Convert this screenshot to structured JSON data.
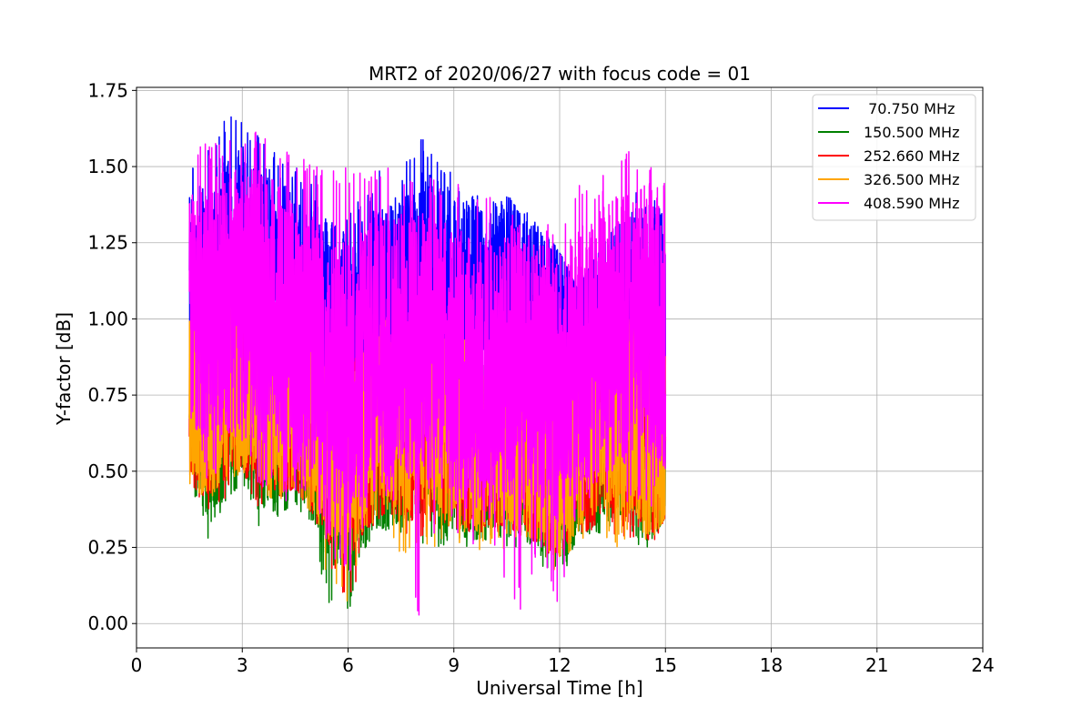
{
  "chart_data": {
    "type": "line",
    "title": "MRT2 of 2020/06/27 with focus code = 01",
    "xlabel": "Universal Time [h]",
    "ylabel": "Y-factor [dB]",
    "xlim": [
      0,
      24
    ],
    "ylim": [
      -0.08,
      1.76
    ],
    "xticks": [
      0,
      3,
      6,
      9,
      12,
      15,
      18,
      21,
      24
    ],
    "yticks": [
      0.0,
      0.25,
      0.5,
      0.75,
      1.0,
      1.25,
      1.5,
      1.75
    ],
    "xtick_labels": [
      "0",
      "3",
      "6",
      "9",
      "12",
      "15",
      "18",
      "21",
      "24"
    ],
    "ytick_labels": [
      "0.00",
      "0.25",
      "0.50",
      "0.75",
      "1.00",
      "1.25",
      "1.50",
      "1.75"
    ],
    "grid": true,
    "legend_position": "top-right",
    "x_range_of_data": [
      1.5,
      15.0
    ],
    "series": [
      {
        "name": " 70.750 MHz",
        "color": "#0000ff",
        "x": [
          1.5,
          2.0,
          2.5,
          3.0,
          3.5,
          4.0,
          4.5,
          5.0,
          5.5,
          6.0,
          6.5,
          7.0,
          7.5,
          8.0,
          8.5,
          9.0,
          9.5,
          10.0,
          10.5,
          11.0,
          11.5,
          12.0,
          12.5,
          13.0,
          13.5,
          14.0,
          14.5,
          15.0
        ],
        "mid": [
          1.05,
          1.1,
          1.15,
          1.15,
          1.12,
          1.1,
          1.08,
          1.05,
          1.0,
          0.98,
          1.0,
          1.05,
          1.05,
          1.1,
          1.12,
          1.1,
          1.1,
          1.1,
          1.12,
          1.05,
          1.02,
          1.0,
          0.98,
          0.95,
          0.95,
          0.98,
          1.0,
          1.0
        ],
        "amp": [
          0.35,
          0.38,
          0.42,
          0.42,
          0.4,
          0.38,
          0.38,
          0.35,
          0.32,
          0.32,
          0.33,
          0.35,
          0.35,
          0.38,
          0.38,
          0.36,
          0.3,
          0.28,
          0.3,
          0.3,
          0.28,
          0.25,
          0.28,
          0.32,
          0.35,
          0.38,
          0.38,
          0.35
        ],
        "min": [
          0.9,
          0.75,
          0.9,
          0.85,
          0.7,
          0.7,
          0.75,
          0.7,
          0.6,
          0.6,
          0.7,
          0.75,
          0.8,
          0.85,
          0.9,
          0.85,
          0.9,
          0.9,
          0.9,
          0.82,
          0.85,
          0.78,
          0.8,
          0.8,
          0.75,
          0.8,
          0.8,
          0.75
        ],
        "max": [
          1.5,
          1.55,
          1.67,
          1.65,
          1.63,
          1.55,
          1.5,
          1.5,
          1.4,
          1.35,
          1.42,
          1.52,
          1.5,
          1.61,
          1.53,
          1.48,
          1.42,
          1.38,
          1.4,
          1.38,
          1.3,
          1.22,
          1.1,
          1.2,
          1.3,
          1.4,
          1.45,
          1.35
        ]
      },
      {
        "name": "150.500 MHz",
        "color": "#008000",
        "x": [
          1.5,
          2.0,
          2.5,
          3.0,
          3.5,
          4.0,
          4.5,
          5.0,
          5.5,
          6.0,
          6.5,
          7.0,
          7.5,
          8.0,
          8.5,
          9.0,
          9.5,
          10.0,
          10.5,
          11.0,
          11.5,
          12.0,
          12.5,
          13.0,
          13.5,
          14.0,
          14.5,
          15.0
        ],
        "mid": [
          0.7,
          0.65,
          0.7,
          0.75,
          0.7,
          0.65,
          0.65,
          0.6,
          0.5,
          0.45,
          0.55,
          0.6,
          0.6,
          0.62,
          0.6,
          0.55,
          0.55,
          0.55,
          0.6,
          0.55,
          0.5,
          0.45,
          0.55,
          0.6,
          0.62,
          0.6,
          0.55,
          0.5
        ],
        "amp": [
          0.25,
          0.3,
          0.3,
          0.3,
          0.3,
          0.3,
          0.28,
          0.28,
          0.3,
          0.3,
          0.3,
          0.3,
          0.3,
          0.28,
          0.28,
          0.28,
          0.28,
          0.28,
          0.28,
          0.28,
          0.28,
          0.28,
          0.3,
          0.3,
          0.3,
          0.3,
          0.3,
          0.3
        ],
        "min": [
          0.4,
          0.27,
          0.35,
          0.45,
          0.3,
          0.35,
          0.4,
          0.3,
          0.02,
          0.0,
          0.25,
          0.3,
          0.28,
          0.2,
          0.25,
          0.25,
          0.25,
          0.2,
          0.25,
          0.25,
          0.18,
          0.1,
          0.25,
          0.28,
          0.3,
          0.25,
          0.25,
          0.35
        ],
        "max": [
          1.0,
          1.0,
          1.0,
          1.05,
          1.0,
          0.95,
          0.95,
          0.9,
          0.85,
          0.8,
          0.85,
          0.9,
          0.9,
          0.9,
          0.9,
          0.85,
          0.85,
          0.85,
          0.9,
          0.85,
          0.85,
          0.8,
          0.85,
          0.9,
          0.9,
          0.9,
          0.85,
          0.8
        ]
      },
      {
        "name": "252.660 MHz",
        "color": "#ff0000",
        "x": [
          1.5,
          2.0,
          2.5,
          3.0,
          3.5,
          4.0,
          4.5,
          5.0,
          5.5,
          6.0,
          6.5,
          7.0,
          7.5,
          8.0,
          8.5,
          9.0,
          9.5,
          10.0,
          10.5,
          11.0,
          11.5,
          12.0,
          12.5,
          13.0,
          13.5,
          14.0,
          14.5,
          15.0
        ],
        "mid": [
          0.72,
          0.7,
          0.75,
          0.78,
          0.75,
          0.7,
          0.7,
          0.65,
          0.55,
          0.5,
          0.6,
          0.65,
          0.65,
          0.66,
          0.65,
          0.6,
          0.6,
          0.6,
          0.62,
          0.58,
          0.55,
          0.5,
          0.58,
          0.62,
          0.65,
          0.62,
          0.58,
          0.55
        ],
        "amp": [
          0.28,
          0.3,
          0.32,
          0.32,
          0.3,
          0.3,
          0.3,
          0.3,
          0.3,
          0.3,
          0.3,
          0.3,
          0.3,
          0.3,
          0.3,
          0.3,
          0.3,
          0.3,
          0.3,
          0.3,
          0.3,
          0.3,
          0.3,
          0.3,
          0.3,
          0.3,
          0.3,
          0.3
        ],
        "min": [
          0.45,
          0.35,
          0.4,
          0.5,
          0.35,
          0.4,
          0.45,
          0.35,
          0.15,
          0.0,
          0.3,
          0.35,
          0.3,
          0.25,
          0.3,
          0.3,
          0.3,
          0.25,
          0.3,
          0.3,
          0.22,
          0.15,
          0.3,
          0.3,
          0.3,
          0.22,
          0.22,
          0.35
        ],
        "max": [
          1.05,
          1.05,
          1.3,
          1.1,
          1.05,
          1.0,
          1.0,
          0.95,
          0.9,
          0.85,
          0.9,
          0.95,
          0.95,
          0.95,
          0.95,
          0.9,
          0.9,
          0.9,
          0.95,
          0.9,
          0.9,
          0.85,
          0.9,
          0.95,
          0.95,
          0.95,
          0.9,
          0.85
        ]
      },
      {
        "name": "326.500 MHz",
        "color": "#ffa500",
        "x": [
          1.5,
          2.0,
          2.5,
          3.0,
          3.5,
          4.0,
          4.5,
          5.0,
          5.5,
          6.0,
          6.5,
          7.0,
          7.5,
          8.0,
          8.5,
          9.0,
          9.5,
          10.0,
          10.5,
          11.0,
          11.5,
          12.0,
          12.5,
          13.0,
          13.5,
          14.0,
          14.5,
          15.0
        ],
        "mid": [
          0.75,
          0.72,
          0.78,
          0.8,
          0.78,
          0.72,
          0.72,
          0.68,
          0.58,
          0.52,
          0.62,
          0.68,
          0.68,
          0.7,
          0.68,
          0.62,
          0.62,
          0.62,
          0.65,
          0.6,
          0.58,
          0.55,
          0.62,
          0.68,
          0.7,
          0.68,
          0.62,
          0.58
        ],
        "amp": [
          0.3,
          0.32,
          0.32,
          0.32,
          0.32,
          0.32,
          0.32,
          0.32,
          0.32,
          0.32,
          0.32,
          0.32,
          0.32,
          0.32,
          0.32,
          0.32,
          0.32,
          0.32,
          0.32,
          0.32,
          0.32,
          0.32,
          0.32,
          0.32,
          0.32,
          0.32,
          0.32,
          0.32
        ],
        "min": [
          0.45,
          0.4,
          0.45,
          0.5,
          0.4,
          0.4,
          0.45,
          0.35,
          0.1,
          0.05,
          0.3,
          0.35,
          0.22,
          0.2,
          0.25,
          0.25,
          0.2,
          0.2,
          0.25,
          0.25,
          0.2,
          0.15,
          0.25,
          0.25,
          0.25,
          0.25,
          0.25,
          0.35
        ],
        "max": [
          1.1,
          1.1,
          1.15,
          1.15,
          1.1,
          1.05,
          1.05,
          1.0,
          0.95,
          0.9,
          0.95,
          1.0,
          1.0,
          1.0,
          1.0,
          0.95,
          0.95,
          0.95,
          1.0,
          0.95,
          0.95,
          0.9,
          0.95,
          1.0,
          1.0,
          1.0,
          0.95,
          0.9
        ]
      },
      {
        "name": "408.590 MHz",
        "color": "#ff00ff",
        "x": [
          1.5,
          2.0,
          2.5,
          3.0,
          3.5,
          4.0,
          4.5,
          5.0,
          5.5,
          6.0,
          6.5,
          7.0,
          7.5,
          8.0,
          8.5,
          9.0,
          9.5,
          10.0,
          10.5,
          11.0,
          11.5,
          12.0,
          12.5,
          13.0,
          13.5,
          14.0,
          14.5,
          15.0
        ],
        "mid": [
          1.0,
          1.05,
          1.05,
          1.05,
          1.05,
          1.0,
          0.95,
          0.9,
          0.85,
          0.8,
          0.85,
          0.9,
          0.92,
          0.9,
          0.88,
          0.85,
          0.82,
          0.82,
          0.85,
          0.8,
          0.8,
          0.78,
          0.85,
          0.9,
          0.95,
          0.98,
          1.0,
          0.95
        ],
        "amp": [
          0.4,
          0.45,
          0.45,
          0.45,
          0.45,
          0.45,
          0.45,
          0.45,
          0.45,
          0.45,
          0.45,
          0.45,
          0.45,
          0.45,
          0.45,
          0.45,
          0.45,
          0.45,
          0.45,
          0.45,
          0.45,
          0.45,
          0.45,
          0.45,
          0.45,
          0.45,
          0.45,
          0.45
        ],
        "min": [
          0.7,
          0.45,
          0.45,
          0.55,
          0.45,
          0.4,
          0.4,
          0.35,
          0.25,
          0.1,
          0.35,
          0.4,
          0.35,
          0.01,
          0.3,
          0.3,
          0.25,
          0.3,
          0.1,
          0.02,
          0.25,
          0.0,
          0.35,
          0.4,
          0.4,
          0.35,
          0.35,
          0.5
        ],
        "max": [
          1.55,
          1.58,
          1.58,
          1.6,
          1.62,
          1.55,
          1.55,
          1.5,
          1.5,
          1.5,
          1.5,
          1.5,
          1.5,
          1.5,
          1.45,
          1.45,
          1.42,
          1.4,
          1.38,
          1.3,
          1.35,
          1.25,
          1.45,
          1.45,
          1.5,
          1.58,
          1.5,
          1.48
        ]
      }
    ]
  }
}
